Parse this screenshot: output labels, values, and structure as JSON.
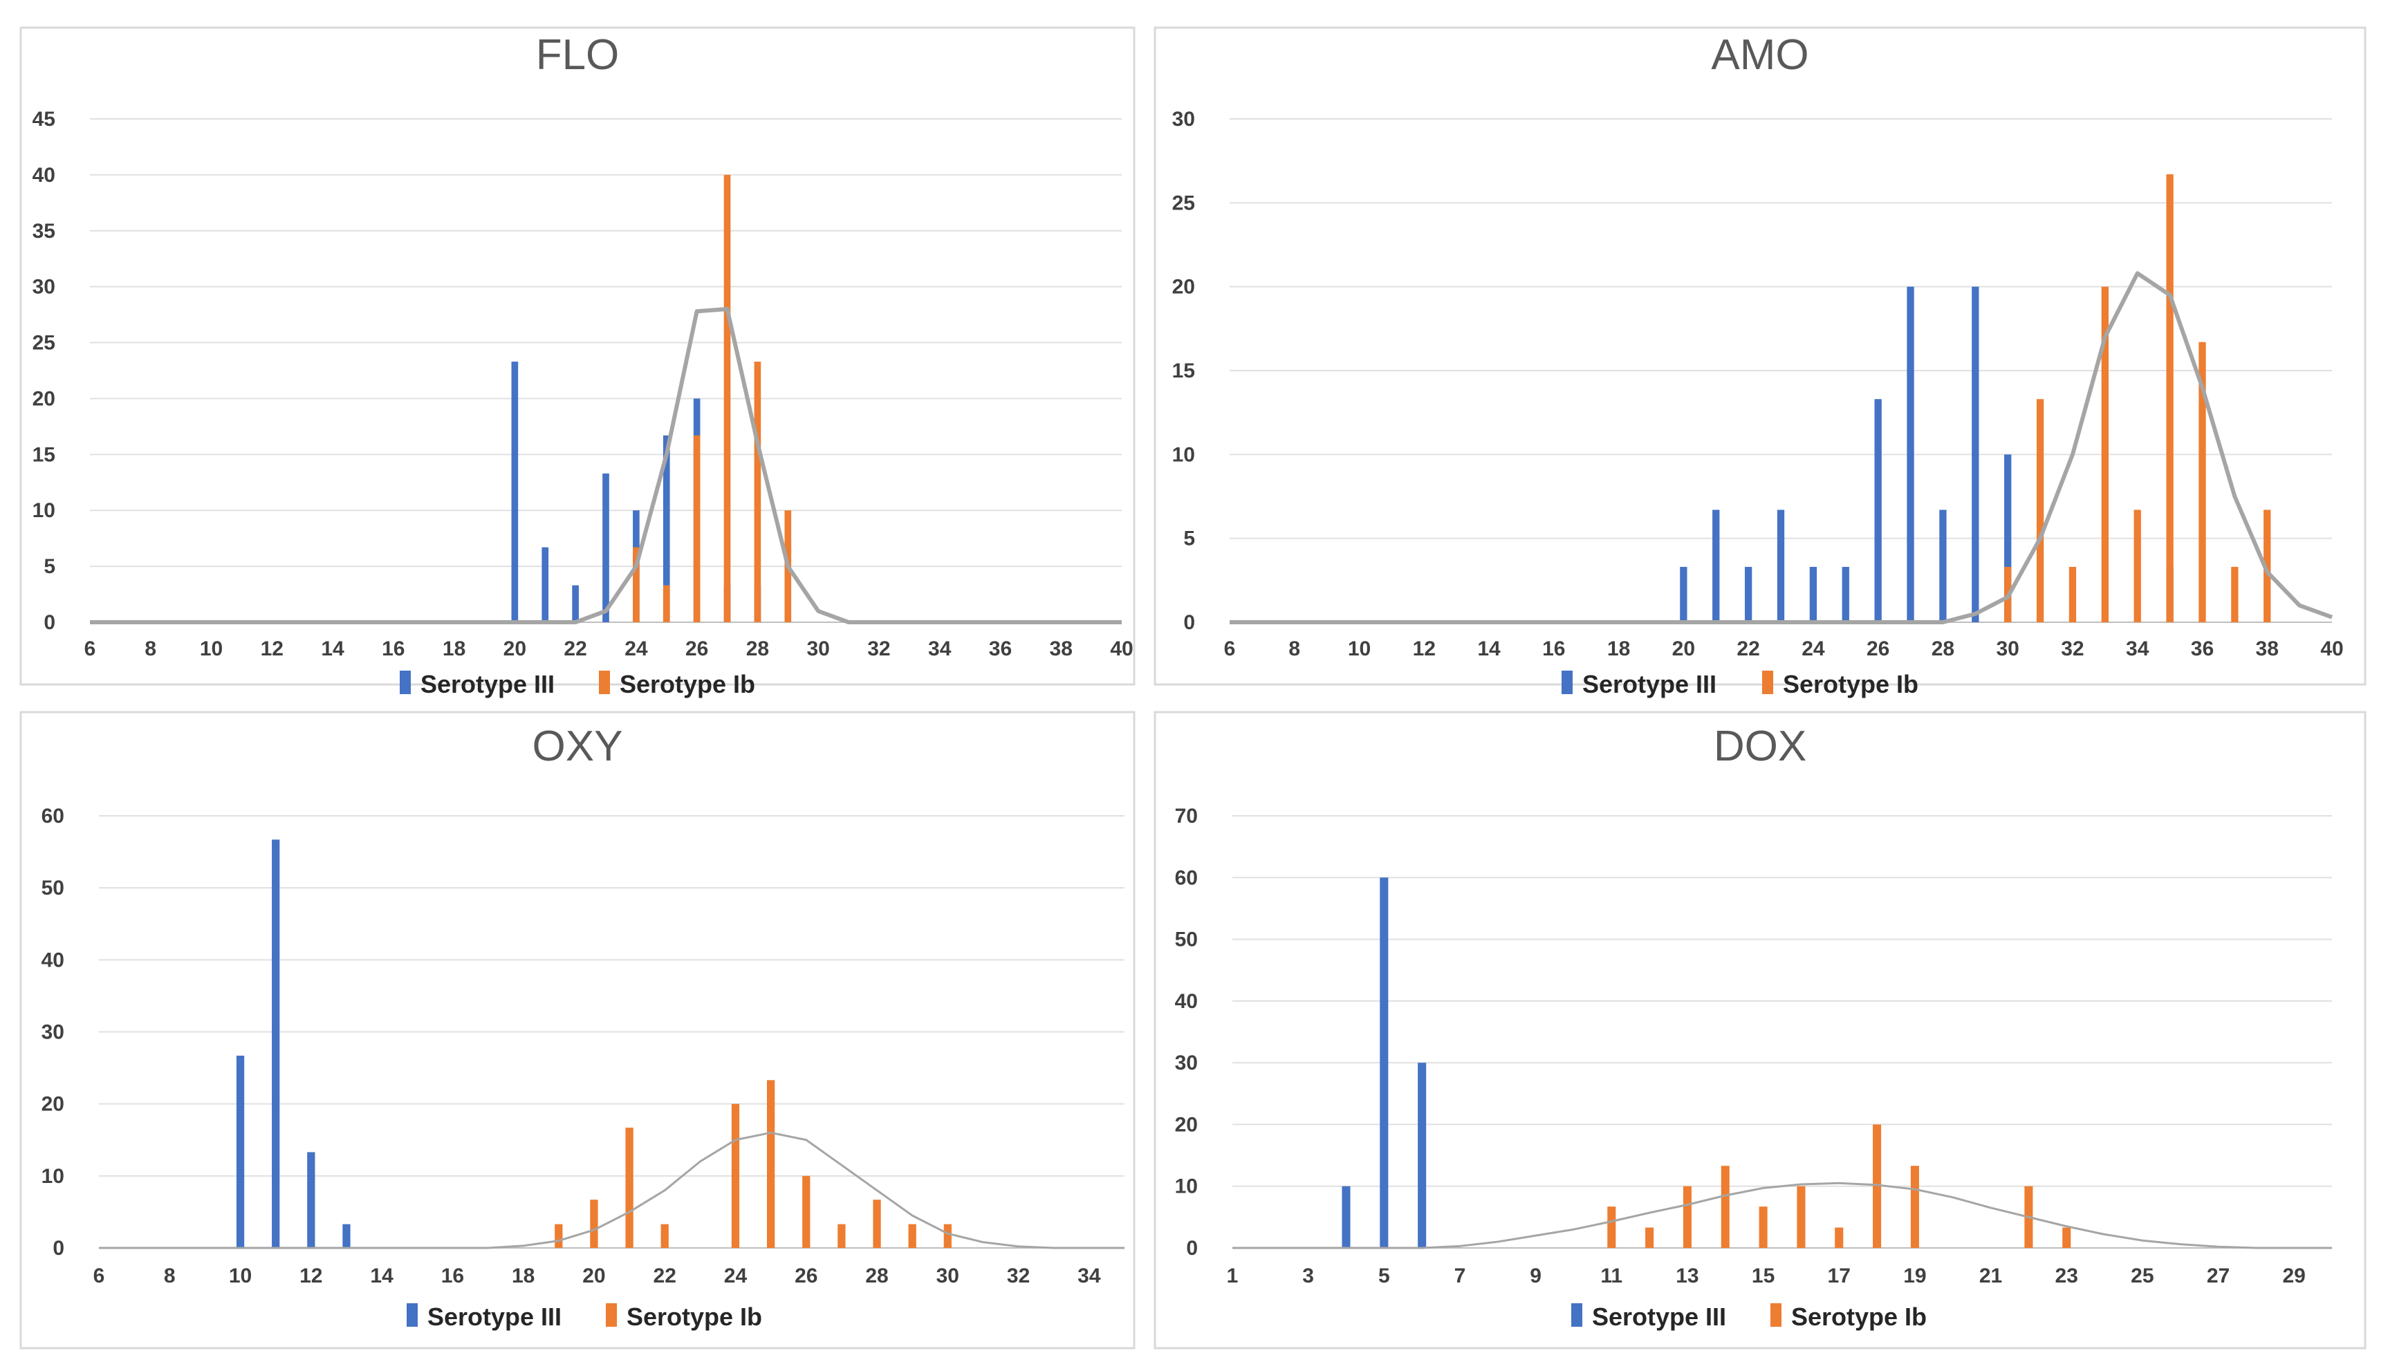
{
  "colors": {
    "serotype_iii": "#4472C4",
    "serotype_ib": "#ED7D31",
    "fit_curve": "#A5A5A5",
    "grid": "#E0E0E0",
    "text": "#404040"
  },
  "chart_data": [
    {
      "type": "bar",
      "title": "FLO",
      "xlim": [
        6,
        40
      ],
      "ylim": [
        0,
        45
      ],
      "xticks": [
        6,
        8,
        10,
        12,
        14,
        16,
        18,
        20,
        22,
        24,
        26,
        28,
        30,
        32,
        34,
        36,
        38,
        40
      ],
      "yticks": [
        0,
        5,
        10,
        15,
        20,
        25,
        30,
        35,
        40,
        45
      ],
      "grid": true,
      "legend_position": "bottom",
      "series": [
        {
          "name": "Serotype III",
          "x": [
            20,
            21,
            22,
            23,
            24,
            25,
            26,
            27,
            28
          ],
          "values": [
            23.3,
            6.7,
            3.3,
            13.3,
            10,
            16.7,
            20,
            3.3,
            3.3
          ]
        },
        {
          "name": "Serotype Ib",
          "x": [
            24,
            25,
            26,
            27,
            28,
            29
          ],
          "values": [
            6.7,
            3.3,
            16.7,
            40,
            23.3,
            10
          ]
        }
      ],
      "curve": {
        "x": [
          6,
          21,
          22,
          23,
          24,
          25,
          26,
          27,
          28,
          29,
          30,
          31,
          40
        ],
        "y": [
          0,
          0,
          0,
          1,
          5,
          15,
          27.8,
          28,
          16,
          5,
          1,
          0,
          0
        ],
        "width": 6
      }
    },
    {
      "type": "bar",
      "title": "AMO",
      "xlim": [
        6,
        40
      ],
      "ylim": [
        0,
        30
      ],
      "xticks": [
        6,
        8,
        10,
        12,
        14,
        16,
        18,
        20,
        22,
        24,
        26,
        28,
        30,
        32,
        34,
        36,
        38,
        40
      ],
      "yticks": [
        0,
        5,
        10,
        15,
        20,
        25,
        30
      ],
      "grid": true,
      "legend_position": "bottom",
      "series": [
        {
          "name": "Serotype III",
          "x": [
            20,
            21,
            22,
            23,
            24,
            25,
            26,
            27,
            28,
            29,
            30,
            35
          ],
          "values": [
            3.3,
            6.7,
            3.3,
            6.7,
            3.3,
            3.3,
            13.3,
            20,
            6.7,
            20,
            10,
            3.3
          ]
        },
        {
          "name": "Serotype Ib",
          "x": [
            30,
            31,
            32,
            33,
            34,
            35,
            36,
            37,
            38
          ],
          "values": [
            3.3,
            13.3,
            3.3,
            20,
            6.7,
            26.7,
            16.7,
            3.3,
            6.7
          ]
        }
      ],
      "curve": {
        "x": [
          6,
          28,
          29,
          30,
          31,
          32,
          33,
          34,
          35,
          36,
          37,
          38,
          39,
          40
        ],
        "y": [
          0,
          0,
          0.5,
          1.5,
          5,
          10,
          17,
          20.8,
          19.5,
          14,
          7.5,
          3,
          1,
          0.3
        ],
        "width": 6
      }
    },
    {
      "type": "bar",
      "title": "OXY",
      "xlim": [
        6,
        35
      ],
      "ylim": [
        0,
        60
      ],
      "xticks": [
        6,
        8,
        10,
        12,
        14,
        16,
        18,
        20,
        22,
        24,
        26,
        28,
        30,
        32,
        34
      ],
      "yticks": [
        0,
        10,
        20,
        30,
        40,
        50,
        60
      ],
      "grid": true,
      "legend_position": "bottom",
      "series": [
        {
          "name": "Serotype III",
          "x": [
            10,
            11,
            12,
            13
          ],
          "values": [
            26.7,
            56.7,
            13.3,
            3.3
          ]
        },
        {
          "name": "Serotype Ib",
          "x": [
            19,
            20,
            21,
            22,
            24,
            25,
            26,
            27,
            28,
            29,
            30
          ],
          "values": [
            3.3,
            6.7,
            16.7,
            3.3,
            20,
            23.3,
            10,
            3.3,
            6.7,
            3.3,
            3.3
          ]
        }
      ],
      "curve": {
        "x": [
          6,
          17,
          18,
          19,
          20,
          21,
          22,
          23,
          24,
          25,
          26,
          27,
          28,
          29,
          30,
          31,
          32,
          33,
          35
        ],
        "y": [
          0,
          0,
          0.3,
          1,
          2.5,
          5,
          8,
          12,
          15,
          16,
          15,
          11.5,
          8,
          4.5,
          2,
          0.8,
          0.2,
          0,
          0
        ],
        "width": 3
      }
    },
    {
      "type": "bar",
      "title": "DOX",
      "xlim": [
        1,
        30
      ],
      "ylim": [
        0,
        70
      ],
      "xticks": [
        1,
        3,
        5,
        7,
        9,
        11,
        13,
        15,
        17,
        19,
        21,
        23,
        25,
        27,
        29
      ],
      "yticks": [
        0,
        10,
        20,
        30,
        40,
        50,
        60,
        70
      ],
      "grid": true,
      "legend_position": "bottom",
      "series": [
        {
          "name": "Serotype III",
          "x": [
            4,
            5,
            6
          ],
          "values": [
            10,
            60,
            30
          ]
        },
        {
          "name": "Serotype Ib",
          "x": [
            11,
            12,
            13,
            14,
            15,
            16,
            17,
            18,
            19,
            22,
            23
          ],
          "values": [
            6.7,
            3.3,
            10,
            13.3,
            6.7,
            10,
            3.3,
            20,
            13.3,
            10,
            3.3
          ]
        }
      ],
      "curve": {
        "x": [
          1,
          6,
          7,
          8,
          9,
          10,
          11,
          12,
          13,
          14,
          15,
          16,
          17,
          18,
          19,
          20,
          21,
          22,
          23,
          24,
          25,
          26,
          27,
          28,
          30
        ],
        "y": [
          0,
          0,
          0.3,
          1,
          2,
          3,
          4.3,
          5.7,
          7,
          8.5,
          9.7,
          10.3,
          10.5,
          10.2,
          9.5,
          8.2,
          6.5,
          5,
          3.5,
          2.2,
          1.2,
          0.6,
          0.2,
          0,
          0
        ],
        "width": 3
      }
    }
  ]
}
